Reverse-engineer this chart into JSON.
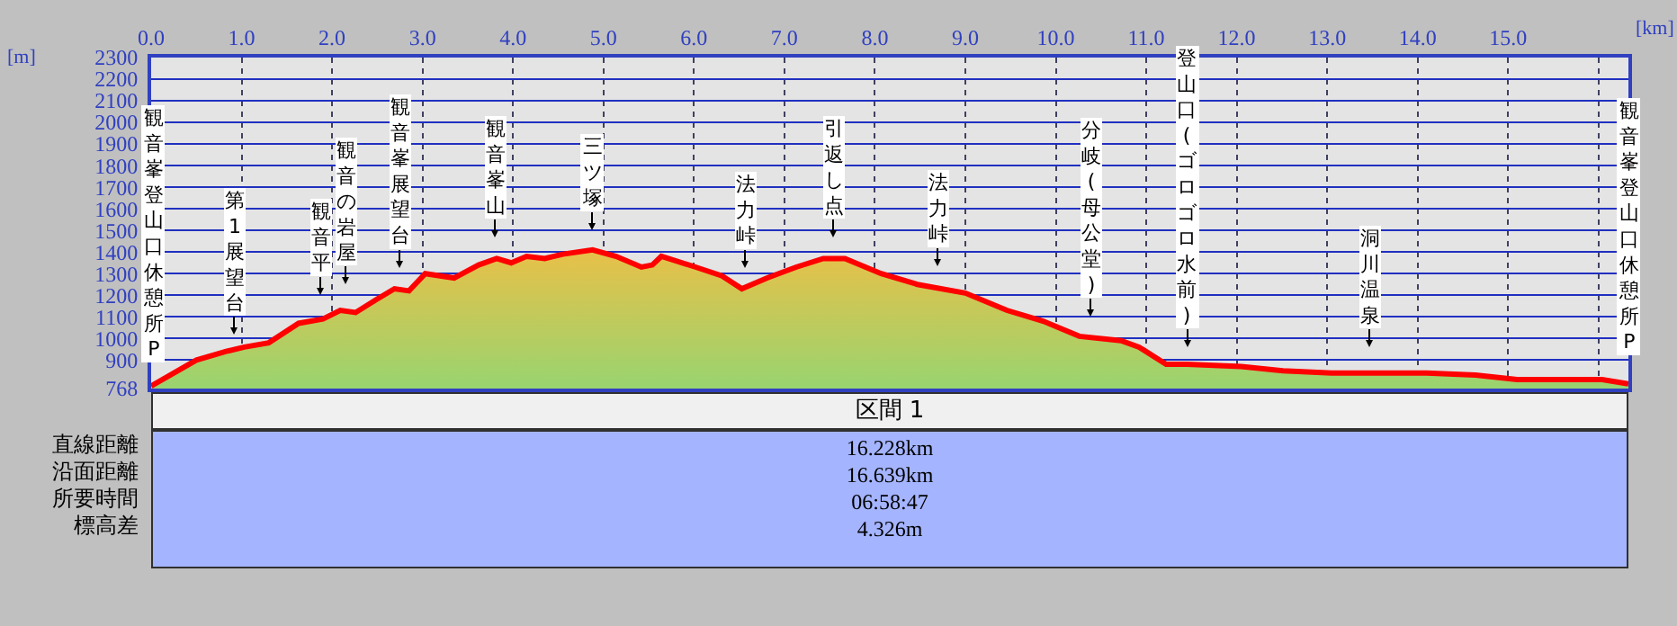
{
  "chart_data": [
    {
      "type": "area",
      "xlabel": "[km]",
      "ylabel": "[m]",
      "x": [
        0,
        0.5,
        0.83,
        1.03,
        1.3,
        1.63,
        1.9,
        2.09,
        2.26,
        2.49,
        2.69,
        2.85,
        3.03,
        3.35,
        3.62,
        3.82,
        3.98,
        4.15,
        4.35,
        4.55,
        4.88,
        5.14,
        5.42,
        5.54,
        5.64,
        6.02,
        6.31,
        6.53,
        6.81,
        7.13,
        7.43,
        7.67,
        8.07,
        8.47,
        9.0,
        9.46,
        9.86,
        10.26,
        10.72,
        10.92,
        11.22,
        11.45,
        12.05,
        12.51,
        13.05,
        14.1,
        14.64,
        15.1,
        16.04,
        16.33
      ],
      "series": [
        {
          "color": "#ff0000",
          "values": [
            780,
            900,
            940,
            960,
            980,
            1070,
            1090,
            1130,
            1120,
            1180,
            1230,
            1220,
            1300,
            1280,
            1340,
            1370,
            1350,
            1380,
            1370,
            1390,
            1410,
            1380,
            1330,
            1340,
            1380,
            1330,
            1290,
            1230,
            1280,
            1330,
            1370,
            1370,
            1300,
            1250,
            1210,
            1130,
            1080,
            1010,
            990,
            960,
            880,
            880,
            870,
            850,
            840,
            840,
            830,
            810,
            810,
            790
          ]
        }
      ],
      "xlim": [
        0,
        16.33
      ],
      "xticks": [
        {
          "value": 0,
          "label": "0.0"
        },
        {
          "value": 1,
          "label": "1.0"
        },
        {
          "value": 2,
          "label": "2.0"
        },
        {
          "value": 3,
          "label": "3.0"
        },
        {
          "value": 4,
          "label": "4.0"
        },
        {
          "value": 5,
          "label": "5.0"
        },
        {
          "value": 6,
          "label": "6.0"
        },
        {
          "value": 7,
          "label": "7.0"
        },
        {
          "value": 8,
          "label": "8.0"
        },
        {
          "value": 9,
          "label": "9.0"
        },
        {
          "value": 10,
          "label": "10.0"
        },
        {
          "value": 11,
          "label": "11.0"
        },
        {
          "value": 12,
          "label": "12.0"
        },
        {
          "value": 13,
          "label": "13.0"
        },
        {
          "value": 14,
          "label": "14.0"
        },
        {
          "value": 15,
          "label": "15.0"
        },
        {
          "value": 16,
          "label": null
        }
      ],
      "ylim": [
        768,
        2300
      ],
      "yticks": [
        768,
        900,
        1000,
        1100,
        1200,
        1300,
        1400,
        1500,
        1600,
        1700,
        1800,
        1900,
        2000,
        2100,
        2200,
        2300
      ],
      "grid": true,
      "annotations": [
        "観音峯登山口休憩所P",
        "第1展望台",
        "観音平",
        "観音の岩屋",
        "観音峯展望台",
        "観音峯山",
        "三ツ塚",
        "法力峠",
        "引返し点",
        "法力峠",
        "分岐(母公堂)",
        "登山口(ゴロゴロ水前)",
        "洞川温泉",
        "観音峯登山口休憩所P"
      ]
    },
    {
      "type": "other",
      "title": "区間 1",
      "annotations": [
        "直線距離",
        "16.228km",
        "沿面距離",
        "16.639km",
        "所要時間",
        "06:58:47",
        "標高差",
        "4.326m"
      ]
    }
  ]
}
